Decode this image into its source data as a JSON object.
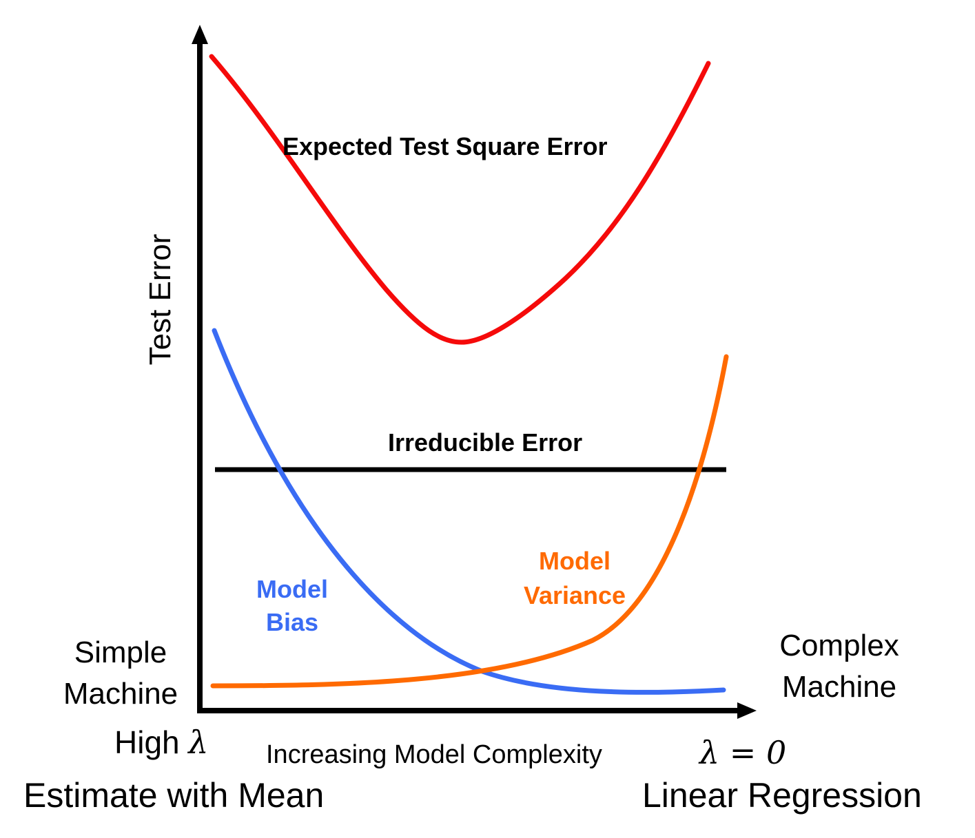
{
  "colors": {
    "total_error": "#f50a0a",
    "bias": "#3a6cf4",
    "variance": "#ff6a00",
    "irreducible": "#000000",
    "axes": "#000000"
  },
  "labels": {
    "y_axis": "Test Error",
    "x_axis": "Increasing Model Complexity",
    "total_error": "Expected Test Square Error",
    "irreducible": "Irreducible Error",
    "bias_line1": "Model",
    "bias_line2": "Bias",
    "variance_line1": "Model",
    "variance_line2": "Variance",
    "simple_line1": "Simple",
    "simple_line2": "Machine",
    "complex_line1": "Complex",
    "complex_line2": "Machine",
    "high_lambda_text": "High",
    "lambda_symbol": "λ",
    "lambda_zero": "λ = 0",
    "left_method": "Estimate with Mean",
    "right_method": "Linear Regression"
  }
}
